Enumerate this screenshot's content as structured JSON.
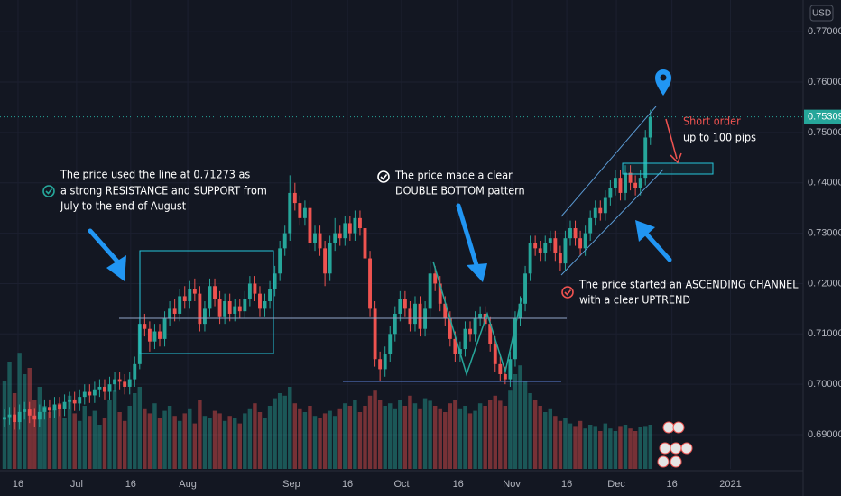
{
  "chart_data": {
    "type": "candlestick",
    "currency": "USD",
    "ylim": [
      0.6832,
      0.7763
    ],
    "yticks": [
      {
        "value": 0.77,
        "label": "0.77000"
      },
      {
        "value": 0.76,
        "label": "0.76000"
      },
      {
        "value": 0.75,
        "label": "0.75000"
      },
      {
        "value": 0.74,
        "label": "0.74000"
      },
      {
        "value": 0.73,
        "label": "0.73000"
      },
      {
        "value": 0.72,
        "label": "0.72000"
      },
      {
        "value": 0.71,
        "label": "0.71000"
      },
      {
        "value": 0.7,
        "label": "0.70000"
      },
      {
        "value": 0.69,
        "label": "0.69000"
      }
    ],
    "xlim": [
      -0.9,
      159.5
    ],
    "xticks": [
      {
        "value": 2.7,
        "label": "16"
      },
      {
        "value": 14.4,
        "label": "Jul"
      },
      {
        "value": 25.2,
        "label": "16"
      },
      {
        "value": 36.6,
        "label": "Aug"
      },
      {
        "value": 57.3,
        "label": "Sep"
      },
      {
        "value": 68.5,
        "label": "16"
      },
      {
        "value": 79.3,
        "label": "Oct"
      },
      {
        "value": 90.6,
        "label": "16"
      },
      {
        "value": 101.3,
        "label": "Nov"
      },
      {
        "value": 112.3,
        "label": "16"
      },
      {
        "value": 122.2,
        "label": "Dec"
      },
      {
        "value": 133.3,
        "label": "16"
      },
      {
        "value": 145,
        "label": "2021"
      }
    ],
    "up_color": "#26a69a",
    "down_color": "#ef5350",
    "last_price": {
      "value": 0.75309,
      "label": "0.75309"
    },
    "vlim": [
      0,
      100
    ],
    "ohlc": [
      [
        0.693,
        0.695,
        0.6915,
        0.6935
      ],
      [
        0.6935,
        0.6955,
        0.692,
        0.694
      ],
      [
        0.694,
        0.6955,
        0.691,
        0.6925
      ],
      [
        0.6925,
        0.696,
        0.691,
        0.6945
      ],
      [
        0.6945,
        0.6965,
        0.693,
        0.695
      ],
      [
        0.695,
        0.6965,
        0.6923,
        0.6938
      ],
      [
        0.6938,
        0.6953,
        0.6915,
        0.693
      ],
      [
        0.693,
        0.696,
        0.6915,
        0.6945
      ],
      [
        0.6945,
        0.697,
        0.693,
        0.6955
      ],
      [
        0.6955,
        0.697,
        0.6933,
        0.6948
      ],
      [
        0.6948,
        0.6975,
        0.6933,
        0.696
      ],
      [
        0.696,
        0.6975,
        0.6937,
        0.6952
      ],
      [
        0.6952,
        0.698,
        0.6937,
        0.6965
      ],
      [
        0.6965,
        0.6985,
        0.695,
        0.697
      ],
      [
        0.697,
        0.6985,
        0.6947,
        0.6962
      ],
      [
        0.6962,
        0.699,
        0.6947,
        0.6975
      ],
      [
        0.6975,
        0.7,
        0.696,
        0.6985
      ],
      [
        0.6985,
        0.7,
        0.6963,
        0.6978
      ],
      [
        0.6978,
        0.7005,
        0.6963,
        0.699
      ],
      [
        0.699,
        0.701,
        0.6975,
        0.6995
      ],
      [
        0.6995,
        0.701,
        0.697,
        0.6985
      ],
      [
        0.6985,
        0.7015,
        0.697,
        0.7
      ],
      [
        0.7,
        0.7025,
        0.6985,
        0.701
      ],
      [
        0.701,
        0.7025,
        0.699,
        0.7005
      ],
      [
        0.7005,
        0.702,
        0.698,
        0.6995
      ],
      [
        0.6995,
        0.7025,
        0.698,
        0.701
      ],
      [
        0.701,
        0.7055,
        0.6995,
        0.704
      ],
      [
        0.704,
        0.7135,
        0.703,
        0.712
      ],
      [
        0.712,
        0.714,
        0.7095,
        0.711
      ],
      [
        0.711,
        0.7125,
        0.7065,
        0.7085
      ],
      [
        0.7085,
        0.712,
        0.707,
        0.7105
      ],
      [
        0.7105,
        0.712,
        0.7075,
        0.709
      ],
      [
        0.709,
        0.7145,
        0.7075,
        0.713
      ],
      [
        0.713,
        0.7165,
        0.7115,
        0.715
      ],
      [
        0.715,
        0.717,
        0.7125,
        0.714
      ],
      [
        0.714,
        0.719,
        0.7125,
        0.7175
      ],
      [
        0.7175,
        0.7195,
        0.715,
        0.7165
      ],
      [
        0.7165,
        0.7205,
        0.715,
        0.719
      ],
      [
        0.719,
        0.721,
        0.7165,
        0.718
      ],
      [
        0.718,
        0.7195,
        0.7105,
        0.712
      ],
      [
        0.712,
        0.7165,
        0.7105,
        0.715
      ],
      [
        0.715,
        0.721,
        0.7135,
        0.7195
      ],
      [
        0.7195,
        0.721,
        0.7155,
        0.717
      ],
      [
        0.717,
        0.7185,
        0.712,
        0.7135
      ],
      [
        0.7135,
        0.718,
        0.712,
        0.7165
      ],
      [
        0.7165,
        0.718,
        0.7125,
        0.714
      ],
      [
        0.714,
        0.717,
        0.7125,
        0.7155
      ],
      [
        0.7155,
        0.717,
        0.713,
        0.7145
      ],
      [
        0.7145,
        0.7185,
        0.713,
        0.717
      ],
      [
        0.717,
        0.7215,
        0.7155,
        0.72
      ],
      [
        0.72,
        0.7215,
        0.7165,
        0.718
      ],
      [
        0.718,
        0.7195,
        0.7135,
        0.715
      ],
      [
        0.715,
        0.718,
        0.7135,
        0.7165
      ],
      [
        0.7165,
        0.7205,
        0.715,
        0.719
      ],
      [
        0.719,
        0.7235,
        0.7175,
        0.722
      ],
      [
        0.722,
        0.7285,
        0.7205,
        0.727
      ],
      [
        0.727,
        0.7315,
        0.7255,
        0.73
      ],
      [
        0.73,
        0.7415,
        0.7285,
        0.738
      ],
      [
        0.738,
        0.74,
        0.7345,
        0.736
      ],
      [
        0.736,
        0.7375,
        0.7315,
        0.733
      ],
      [
        0.733,
        0.7365,
        0.7315,
        0.735
      ],
      [
        0.735,
        0.7365,
        0.7265,
        0.728
      ],
      [
        0.728,
        0.7315,
        0.7265,
        0.73
      ],
      [
        0.73,
        0.7315,
        0.7255,
        0.727
      ],
      [
        0.727,
        0.7285,
        0.7195,
        0.722
      ],
      [
        0.722,
        0.7295,
        0.7205,
        0.728
      ],
      [
        0.728,
        0.733,
        0.7265,
        0.73
      ],
      [
        0.73,
        0.7315,
        0.7275,
        0.729
      ],
      [
        0.729,
        0.7335,
        0.7275,
        0.732
      ],
      [
        0.732,
        0.7335,
        0.7285,
        0.73
      ],
      [
        0.73,
        0.7345,
        0.7285,
        0.733
      ],
      [
        0.733,
        0.7345,
        0.7295,
        0.731
      ],
      [
        0.731,
        0.7325,
        0.7235,
        0.725
      ],
      [
        0.725,
        0.7265,
        0.7135,
        0.715
      ],
      [
        0.715,
        0.7165,
        0.7035,
        0.705
      ],
      [
        0.705,
        0.7065,
        0.7005,
        0.703
      ],
      [
        0.703,
        0.7075,
        0.7015,
        0.706
      ],
      [
        0.706,
        0.7115,
        0.7045,
        0.71
      ],
      [
        0.71,
        0.7155,
        0.7085,
        0.714
      ],
      [
        0.714,
        0.7185,
        0.7125,
        0.717
      ],
      [
        0.717,
        0.7185,
        0.7135,
        0.715
      ],
      [
        0.715,
        0.7165,
        0.7105,
        0.712
      ],
      [
        0.712,
        0.7175,
        0.7105,
        0.716
      ],
      [
        0.716,
        0.7175,
        0.7095,
        0.711
      ],
      [
        0.711,
        0.7165,
        0.7095,
        0.715
      ],
      [
        0.715,
        0.7245,
        0.7135,
        0.722
      ],
      [
        0.722,
        0.7235,
        0.7185,
        0.72
      ],
      [
        0.72,
        0.7215,
        0.7145,
        0.716
      ],
      [
        0.716,
        0.7175,
        0.7115,
        0.713
      ],
      [
        0.713,
        0.7145,
        0.7075,
        0.709
      ],
      [
        0.709,
        0.7105,
        0.7045,
        0.706
      ],
      [
        0.706,
        0.7085,
        0.7045,
        0.707
      ],
      [
        0.707,
        0.7125,
        0.7055,
        0.711
      ],
      [
        0.711,
        0.7125,
        0.7085,
        0.71
      ],
      [
        0.71,
        0.7145,
        0.7085,
        0.713
      ],
      [
        0.713,
        0.7155,
        0.7115,
        0.714
      ],
      [
        0.714,
        0.7155,
        0.7105,
        0.712
      ],
      [
        0.712,
        0.7135,
        0.7065,
        0.708
      ],
      [
        0.708,
        0.7095,
        0.7025,
        0.704
      ],
      [
        0.704,
        0.7055,
        0.7005,
        0.702
      ],
      [
        0.702,
        0.7035,
        0.7,
        0.701
      ],
      [
        0.701,
        0.7065,
        0.6995,
        0.705
      ],
      [
        0.705,
        0.7145,
        0.7035,
        0.713
      ],
      [
        0.713,
        0.7175,
        0.7115,
        0.716
      ],
      [
        0.716,
        0.7235,
        0.7145,
        0.722
      ],
      [
        0.722,
        0.7295,
        0.7205,
        0.728
      ],
      [
        0.728,
        0.7295,
        0.7255,
        0.727
      ],
      [
        0.727,
        0.7285,
        0.7245,
        0.726
      ],
      [
        0.726,
        0.7295,
        0.7245,
        0.728
      ],
      [
        0.728,
        0.7305,
        0.7265,
        0.729
      ],
      [
        0.729,
        0.7305,
        0.7245,
        0.726
      ],
      [
        0.726,
        0.7275,
        0.7225,
        0.724
      ],
      [
        0.724,
        0.7305,
        0.7225,
        0.729
      ],
      [
        0.729,
        0.7325,
        0.7275,
        0.731
      ],
      [
        0.731,
        0.7325,
        0.7275,
        0.729
      ],
      [
        0.729,
        0.7305,
        0.7255,
        0.727
      ],
      [
        0.727,
        0.7315,
        0.7255,
        0.73
      ],
      [
        0.73,
        0.7345,
        0.7285,
        0.733
      ],
      [
        0.733,
        0.7365,
        0.7315,
        0.735
      ],
      [
        0.735,
        0.7365,
        0.7325,
        0.734
      ],
      [
        0.734,
        0.7385,
        0.7325,
        0.737
      ],
      [
        0.737,
        0.7405,
        0.7355,
        0.739
      ],
      [
        0.739,
        0.7425,
        0.7375,
        0.741
      ],
      [
        0.741,
        0.7425,
        0.7365,
        0.738
      ],
      [
        0.738,
        0.7435,
        0.7365,
        0.742
      ],
      [
        0.742,
        0.7435,
        0.7385,
        0.74
      ],
      [
        0.74,
        0.7415,
        0.7375,
        0.739
      ],
      [
        0.739,
        0.7425,
        0.7375,
        0.741
      ],
      [
        0.741,
        0.7505,
        0.7395,
        0.749
      ],
      [
        0.749,
        0.7545,
        0.7475,
        0.7531
      ]
    ],
    "volume": [
      70,
      85,
      60,
      92,
      75,
      80,
      55,
      65,
      50,
      45,
      48,
      52,
      40,
      58,
      44,
      38,
      50,
      42,
      46,
      35,
      40,
      55,
      62,
      45,
      38,
      50,
      60,
      65,
      48,
      44,
      52,
      40,
      46,
      50,
      42,
      38,
      44,
      48,
      36,
      55,
      42,
      40,
      46,
      44,
      38,
      42,
      40,
      36,
      44,
      48,
      52,
      45,
      40,
      50,
      56,
      60,
      58,
      65,
      52,
      48,
      45,
      50,
      42,
      40,
      44,
      46,
      42,
      48,
      52,
      50,
      55,
      45,
      50,
      58,
      62,
      55,
      50,
      52,
      48,
      55,
      50,
      58,
      52,
      48,
      56,
      54,
      50,
      48,
      45,
      52,
      55,
      48,
      50,
      44,
      46,
      52,
      50,
      55,
      58,
      54,
      50,
      62,
      75,
      82,
      70,
      60,
      55,
      50,
      45,
      48,
      42,
      38,
      40,
      36,
      34,
      38,
      32,
      35,
      34,
      30,
      36,
      32,
      30,
      34,
      35,
      32,
      30,
      33,
      34,
      35
    ],
    "annotations": {
      "resistance": [
        "The price used the line at 0.71273 as",
        "a strong RESISTANCE and SUPPORT from",
        "July to the end of August"
      ],
      "double_bottom": [
        "The price made a clear",
        "DOUBLE BOTTOM pattern"
      ],
      "channel": [
        "The price started an ASCENDING CHANNEL",
        "with a clear UPTREND"
      ],
      "short_order": "Short order",
      "target": "up to 100 pips"
    }
  }
}
